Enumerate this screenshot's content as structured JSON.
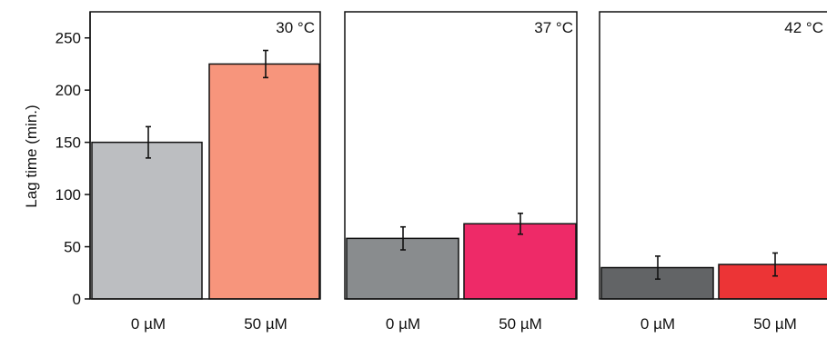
{
  "chart_data": {
    "type": "bar",
    "ylabel": "Lag time (min.)",
    "ylim": [
      0,
      275
    ],
    "yticks": [
      0,
      50,
      100,
      150,
      200,
      250
    ],
    "categories": [
      "0 µM",
      "50 µM"
    ],
    "panels": [
      {
        "title": "30 °C",
        "bars": [
          {
            "category": "0 µM",
            "value": 150,
            "error": 15,
            "color": "#bcbec1"
          },
          {
            "category": "50 µM",
            "value": 225,
            "error": 13,
            "color": "#f7957c"
          }
        ]
      },
      {
        "title": "37 °C",
        "bars": [
          {
            "category": "0 µM",
            "value": 58,
            "error": 11,
            "color": "#898c8e"
          },
          {
            "category": "50 µM",
            "value": 72,
            "error": 10,
            "color": "#ee2a68"
          }
        ]
      },
      {
        "title": "42 °C",
        "bars": [
          {
            "category": "0 µM",
            "value": 30,
            "error": 11,
            "color": "#626466"
          },
          {
            "category": "50 µM",
            "value": 33,
            "error": 11,
            "color": "#ec3436"
          }
        ]
      }
    ]
  }
}
